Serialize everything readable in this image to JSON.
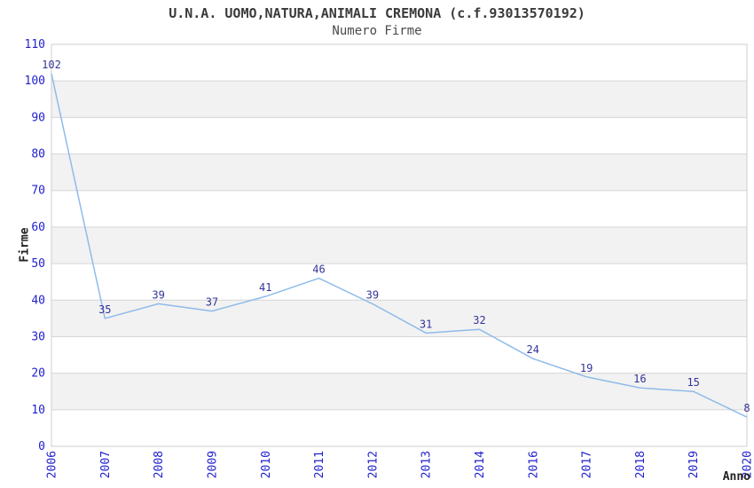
{
  "chart_data": {
    "type": "line",
    "title": "U.N.A. UOMO,NATURA,ANIMALI CREMONA (c.f.93013570192)",
    "subtitle": "Numero Firme",
    "xlabel": "Anno",
    "ylabel": "Firme",
    "categories": [
      "2006",
      "2007",
      "2008",
      "2009",
      "2010",
      "2011",
      "2012",
      "2013",
      "2014",
      "2016",
      "2017",
      "2018",
      "2019",
      "2020"
    ],
    "values": [
      102,
      35,
      39,
      37,
      41,
      46,
      39,
      31,
      32,
      24,
      19,
      16,
      15,
      8
    ],
    "ylim": [
      0,
      110
    ],
    "yticks": [
      0,
      10,
      20,
      30,
      40,
      50,
      60,
      70,
      80,
      90,
      100,
      110
    ],
    "grid": true,
    "legend_position": "none",
    "row_banding": "alternating gray bands between 10-20, 30-40, 50-60, 70-80, 90-100",
    "data_labels_shown": true,
    "x_tick_rotation_degrees": -90
  },
  "colors": {
    "background": "#ffffff",
    "band_fill": "#f2f2f2",
    "grid_line": "#d6d6d6",
    "plot_border": "#cfcfcf",
    "series_line": "#8fbbea",
    "tick_label": "#1f1fcd",
    "data_label": "#333399",
    "title_text": "#3a3a3a",
    "axis_title_text": "#222222"
  }
}
